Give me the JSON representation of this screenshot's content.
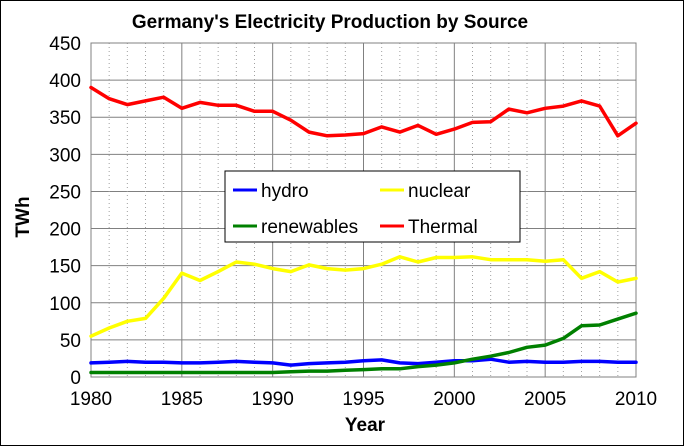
{
  "chart_data": {
    "type": "line",
    "title": "Germany's Electricity Production by Source",
    "xlabel": "Year",
    "ylabel": "TWh",
    "xlim": [
      1980,
      2010
    ],
    "ylim": [
      0,
      450
    ],
    "x_ticks": [
      1980,
      1985,
      1990,
      1995,
      2000,
      2005,
      2010
    ],
    "y_ticks": [
      0,
      50,
      100,
      150,
      200,
      250,
      300,
      350,
      400,
      450
    ],
    "grid": true,
    "legend_position": "center",
    "x": [
      1980,
      1981,
      1982,
      1983,
      1984,
      1985,
      1986,
      1987,
      1988,
      1989,
      1990,
      1991,
      1992,
      1993,
      1994,
      1995,
      1996,
      1997,
      1998,
      1999,
      2000,
      2001,
      2002,
      2003,
      2004,
      2005,
      2006,
      2007,
      2008,
      2009,
      2010
    ],
    "series": [
      {
        "name": "hydro",
        "color": "#0000ff",
        "values": [
          19,
          20,
          21,
          20,
          20,
          19,
          19,
          20,
          21,
          20,
          19,
          16,
          18,
          19,
          20,
          22,
          23,
          19,
          18,
          20,
          22,
          22,
          24,
          20,
          21,
          20,
          20,
          21,
          21,
          20,
          20
        ]
      },
      {
        "name": "nuclear",
        "color": "#ffff00",
        "values": [
          55,
          66,
          75,
          79,
          106,
          140,
          130,
          142,
          155,
          152,
          146,
          142,
          151,
          146,
          144,
          146,
          152,
          162,
          155,
          161,
          161,
          162,
          158,
          158,
          158,
          156,
          158,
          133,
          142,
          128,
          133
        ]
      },
      {
        "name": "renewables",
        "color": "#008000",
        "values": [
          6,
          6,
          6,
          6,
          6,
          6,
          6,
          6,
          6,
          6,
          6,
          7,
          8,
          8,
          9,
          10,
          11,
          11,
          14,
          16,
          19,
          24,
          28,
          33,
          40,
          43,
          52,
          69,
          70,
          78,
          86
        ]
      },
      {
        "name": "Thermal",
        "color": "#ff0000",
        "values": [
          390,
          375,
          367,
          372,
          377,
          362,
          370,
          366,
          366,
          358,
          358,
          346,
          330,
          325,
          326,
          328,
          337,
          330,
          339,
          327,
          334,
          343,
          344,
          361,
          356,
          362,
          365,
          372,
          365,
          325,
          342
        ]
      }
    ],
    "legend_order": [
      "hydro",
      "nuclear",
      "renewables",
      "Thermal"
    ]
  }
}
